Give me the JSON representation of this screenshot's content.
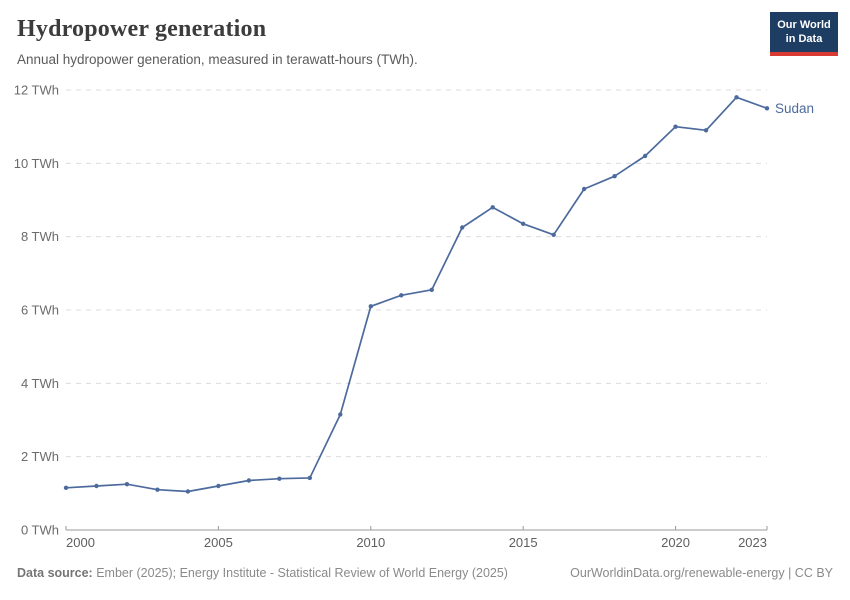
{
  "header": {
    "title": "Hydropower generation",
    "subtitle": "Annual hydropower generation, measured in terawatt-hours (TWh)."
  },
  "logo": {
    "line1": "Our World",
    "line2": "in Data",
    "bg_color": "#1d3d63",
    "accent_color": "#d93a34"
  },
  "chart_data": {
    "type": "line",
    "title": "Hydropower generation",
    "subtitle": "Annual hydropower generation, measured in terawatt-hours (TWh).",
    "unit": "TWh",
    "xlabel": "",
    "ylabel": "",
    "xlim": [
      2000,
      2023
    ],
    "ylim": [
      0,
      12
    ],
    "grid": "horizontal dashed",
    "x": [
      2000,
      2001,
      2002,
      2003,
      2004,
      2005,
      2006,
      2007,
      2008,
      2009,
      2010,
      2011,
      2012,
      2013,
      2014,
      2015,
      2016,
      2017,
      2018,
      2019,
      2020,
      2021,
      2022,
      2023
    ],
    "series": [
      {
        "name": "Sudan",
        "color": "#4c6a9c",
        "values": [
          1.15,
          1.2,
          1.25,
          1.1,
          1.05,
          1.2,
          1.35,
          1.4,
          1.42,
          3.15,
          6.1,
          6.4,
          6.55,
          8.25,
          8.8,
          8.35,
          8.05,
          9.3,
          9.65,
          10.2,
          11.0,
          10.9,
          11.8,
          11.5
        ]
      }
    ],
    "end_label": "Sudan",
    "yticks": [
      {
        "value": 0,
        "label": "0 TWh"
      },
      {
        "value": 2,
        "label": "2 TWh"
      },
      {
        "value": 4,
        "label": "4 TWh"
      },
      {
        "value": 6,
        "label": "6 TWh"
      },
      {
        "value": 8,
        "label": "8 TWh"
      },
      {
        "value": 10,
        "label": "10 TWh"
      },
      {
        "value": 12,
        "label": "12 TWh"
      }
    ],
    "xticks": [
      {
        "year": 2000,
        "label": "2000",
        "align": "start"
      },
      {
        "year": 2005,
        "label": "2005",
        "align": "middle"
      },
      {
        "year": 2010,
        "label": "2010",
        "align": "middle"
      },
      {
        "year": 2015,
        "label": "2015",
        "align": "middle"
      },
      {
        "year": 2020,
        "label": "2020",
        "align": "middle"
      },
      {
        "year": 2023,
        "label": "2023",
        "align": "end"
      }
    ],
    "colors": {
      "gridline": "#dcdcdc",
      "axis": "#9a9a9a",
      "ytick_label": "#6b6b6b",
      "xtick_label": "#5f5f5f"
    }
  },
  "footer": {
    "source_prefix": "Data source:",
    "source_text": " Ember (2025); Energy Institute - Statistical Review of World Energy (2025)",
    "right_text": "OurWorldinData.org/renewable-energy | CC BY"
  }
}
